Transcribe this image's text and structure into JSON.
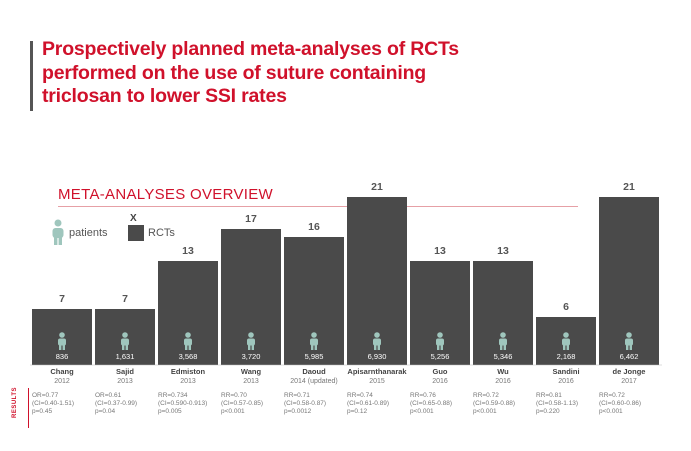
{
  "header": {
    "title": "Prospectively planned meta-analyses of RCTs\nperformed on the use of suture containing\ntriclosan to lower SSI rates"
  },
  "overview": {
    "title": "META-ANALYSES OVERVIEW"
  },
  "legend": {
    "patients_label": "patients",
    "rct_marker": "X",
    "rct_label": "RCTs"
  },
  "colors": {
    "accent": "#d0112b",
    "bar": "#4a4a4a",
    "patient_icon": "#9fc6bd"
  },
  "results_label": "RESULTS",
  "chart_data": {
    "type": "bar",
    "categories": [
      "Chang",
      "Sajid",
      "Edmiston",
      "Wang",
      "Daoud",
      "Apisarnthanarak",
      "Guo",
      "Wu",
      "Sandini",
      "de Jonge"
    ],
    "years": [
      "2012",
      "2013",
      "2013",
      "2013",
      "2014 (updated)",
      "2015",
      "2016",
      "2016",
      "2016",
      "2017"
    ],
    "values": [
      7,
      7,
      13,
      17,
      16,
      21,
      13,
      13,
      6,
      21
    ],
    "patients": [
      "836",
      "1,631",
      "3,568",
      "3,720",
      "5,985",
      "6,930",
      "5,256",
      "5,346",
      "2,168",
      "6,462"
    ],
    "results": [
      "OR=0.77\n(CI=0.40-1.51)\np=0.45",
      "OR=0.61\n(CI=0.37-0.99)\np=0.04",
      "RR=0.734\n(CI=0.590-0.913)\np=0.005",
      "RR=0.70\n(CI=0.57-0.85)\np<0.001",
      "RR=0.71\n(CI=0.58-0.87)\np=0.0012",
      "RR=0.74\n(CI=0.61-0.89)\np=0.12",
      "RR=0.76\n(CI=0.65-0.88)\np<0.001",
      "RR=0.72\n(CI=0.59-0.88)\np<0.001",
      "RR=0.81\n(CI=0.58-1.13)\np=0.220",
      "RR=0.72\n(CI=0.60-0.86)\np<0.001"
    ],
    "ylim": [
      0,
      21
    ]
  }
}
